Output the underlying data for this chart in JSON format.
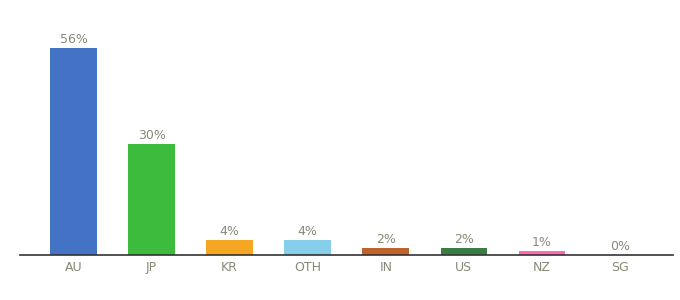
{
  "categories": [
    "AU",
    "JP",
    "KR",
    "OTH",
    "IN",
    "US",
    "NZ",
    "SG"
  ],
  "values": [
    56,
    30,
    4,
    4,
    2,
    2,
    1,
    0
  ],
  "bar_colors": [
    "#4472c4",
    "#3dbb3d",
    "#f5a623",
    "#87ceeb",
    "#c0622b",
    "#3a7d44",
    "#ff69b4",
    "#d0d0d0"
  ],
  "label_texts": [
    "56%",
    "30%",
    "4%",
    "4%",
    "2%",
    "2%",
    "1%",
    "0%"
  ],
  "background_color": "#ffffff",
  "ylim": [
    0,
    65
  ],
  "label_fontsize": 9,
  "tick_fontsize": 9,
  "label_color": "#888877",
  "tick_color": "#888877"
}
